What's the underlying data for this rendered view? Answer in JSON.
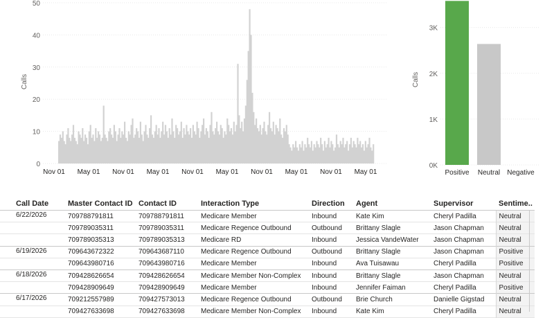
{
  "line_chart": {
    "ylabel": "Calls",
    "y_ticks": [
      "50",
      "40",
      "30",
      "20",
      "10",
      "0"
    ],
    "x_ticks": [
      "Nov 01",
      "May 01",
      "Nov 01",
      "May 01",
      "Nov 01",
      "May 01",
      "Nov 01",
      "May 01",
      "Nov 01",
      "May 01"
    ]
  },
  "bar_chart": {
    "ylabel": "Calls",
    "y_ticks": [
      "3K",
      "2K",
      "1K",
      "0K"
    ],
    "categories": [
      "Positive",
      "Neutral",
      "Negative"
    ]
  },
  "chart_data": [
    {
      "type": "area",
      "title": "",
      "xlabel": "",
      "ylabel": "Calls",
      "ylim": [
        0,
        50
      ],
      "x_tick_labels": [
        "Nov 01",
        "May 01",
        "Nov 01",
        "May 01",
        "Nov 01",
        "May 01",
        "Nov 01",
        "May 01",
        "Nov 01",
        "May 01"
      ],
      "series": [
        {
          "values": [
            7,
            9,
            8,
            10,
            7,
            6,
            9,
            11,
            8,
            7,
            9,
            12,
            8,
            7,
            6,
            10,
            9,
            8,
            11,
            7,
            9,
            8,
            6,
            10,
            12,
            8,
            9,
            7,
            11,
            8,
            10,
            9,
            7,
            8,
            18,
            9,
            8,
            7,
            10,
            11,
            9,
            8,
            12,
            10,
            7,
            9,
            11,
            8,
            10,
            9,
            13,
            8,
            7,
            10,
            9,
            12,
            14,
            8,
            9,
            11,
            10,
            8,
            13,
            9,
            7,
            10,
            12,
            9,
            8,
            11,
            15,
            9,
            8,
            10,
            12,
            9,
            11,
            8,
            10,
            13,
            9,
            12,
            10,
            8,
            11,
            9,
            14,
            10,
            8,
            12,
            11,
            9,
            10,
            13,
            8,
            11,
            9,
            12,
            10,
            9,
            11,
            8,
            12,
            10,
            9,
            13,
            11,
            8,
            10,
            12,
            14,
            9,
            11,
            10,
            8,
            12,
            16,
            10,
            9,
            11,
            13,
            10,
            9,
            12,
            11,
            8,
            10,
            9,
            14,
            12,
            10,
            11,
            9,
            13,
            10,
            12,
            31,
            15,
            11,
            13,
            10,
            14,
            18,
            26,
            35,
            48,
            40,
            22,
            16,
            12,
            14,
            11,
            10,
            12,
            9,
            11,
            13,
            10,
            9,
            12,
            16,
            11,
            10,
            13,
            9,
            12,
            11,
            10,
            14,
            9,
            8,
            11,
            10,
            12,
            9,
            6,
            5,
            4,
            6,
            5,
            7,
            5,
            4,
            6,
            5,
            7,
            4,
            6,
            5,
            8,
            6,
            5,
            7,
            4,
            6,
            5,
            7,
            6,
            5,
            8,
            6,
            4,
            7,
            5,
            6,
            8,
            5,
            7,
            6,
            4,
            5,
            9,
            6,
            5,
            7,
            6,
            8,
            5,
            6,
            7,
            4,
            6,
            8,
            5,
            7,
            6,
            5,
            8,
            6,
            7,
            5,
            6,
            4,
            7,
            5,
            6,
            8,
            5,
            4,
            6
          ]
        }
      ]
    },
    {
      "type": "bar",
      "title": "",
      "xlabel": "",
      "ylabel": "Calls",
      "ylim": [
        0,
        3600
      ],
      "categories": [
        "Positive",
        "Neutral",
        "Negative"
      ],
      "values": [
        3580,
        2640,
        0
      ],
      "colors": [
        "#58a84b",
        "#c8c8c8",
        "#c8c8c8"
      ]
    }
  ],
  "table": {
    "headers": [
      "Call Date",
      "Master Contact ID",
      "Contact ID",
      "Interaction Type",
      "Direction",
      "Agent",
      "Supervisor",
      "Sentime.."
    ],
    "rows": [
      {
        "date": "6/22/2026",
        "master": "709788791811",
        "contact": "709788791811",
        "type": "Medicare Member",
        "direction": "Inbound",
        "agent": "Kate Kim",
        "supervisor": "Cheryl Padilla",
        "sentiment": "Neutral"
      },
      {
        "date": "",
        "master": "709789035311",
        "contact": "709789035311",
        "type": "Medicare Regence Outbound",
        "direction": "Outbound",
        "agent": "Brittany Slagle",
        "supervisor": "Jason Chapman",
        "sentiment": "Neutral"
      },
      {
        "date": "",
        "master": "709789035313",
        "contact": "709789035313",
        "type": "Medicare RD",
        "direction": "Inbound",
        "agent": "Jessica VandeWater",
        "supervisor": "Jason Chapman",
        "sentiment": "Neutral"
      },
      {
        "date": "6/19/2026",
        "master": "709643672322",
        "contact": "709643687110",
        "type": "Medicare Regence Outbound",
        "direction": "Outbound",
        "agent": "Brittany Slagle",
        "supervisor": "Jason Chapman",
        "sentiment": "Positive"
      },
      {
        "date": "",
        "master": "709643980716",
        "contact": "709643980716",
        "type": "Medicare Member",
        "direction": "Inbound",
        "agent": "Ava Tuisawau",
        "supervisor": "Cheryl Padilla",
        "sentiment": "Positive"
      },
      {
        "date": "6/18/2026",
        "master": "709428626654",
        "contact": "709428626654",
        "type": "Medicare Member Non-Complex",
        "direction": "Inbound",
        "agent": "Brittany Slagle",
        "supervisor": "Jason Chapman",
        "sentiment": "Neutral"
      },
      {
        "date": "",
        "master": "709428909649",
        "contact": "709428909649",
        "type": "Medicare Member",
        "direction": "Inbound",
        "agent": "Jennifer Faiman",
        "supervisor": "Cheryl Padilla",
        "sentiment": "Positive"
      },
      {
        "date": "6/17/2026",
        "master": "709212557989",
        "contact": "709427573013",
        "type": "Medicare Regence Outbound",
        "direction": "Outbound",
        "agent": "Brie Church",
        "supervisor": "Danielle Gigstad",
        "sentiment": "Neutral"
      },
      {
        "date": "",
        "master": "709427633698",
        "contact": "709427633698",
        "type": "Medicare Member Non-Complex",
        "direction": "Inbound",
        "agent": "Kate Kim",
        "supervisor": "Cheryl Padilla",
        "sentiment": "Neutral"
      }
    ]
  }
}
